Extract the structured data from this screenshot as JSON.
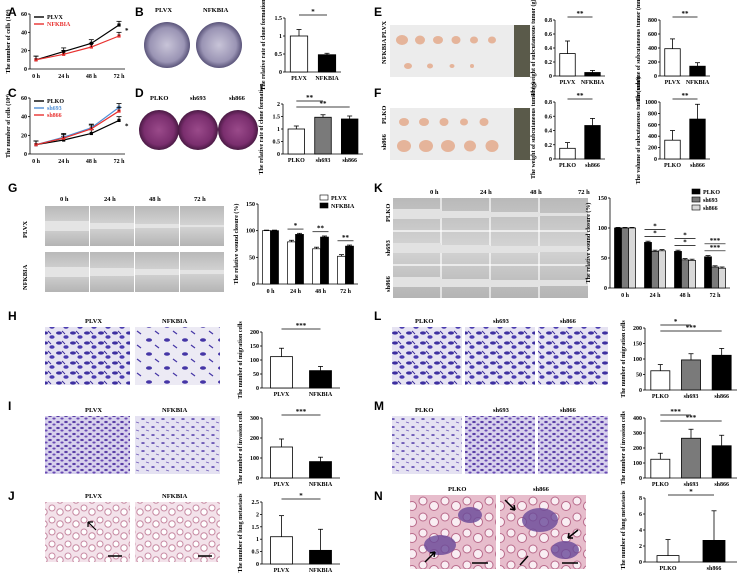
{
  "panel_letters": [
    "A",
    "B",
    "C",
    "D",
    "E",
    "F",
    "G",
    "H",
    "I",
    "J",
    "K",
    "L",
    "M",
    "N"
  ],
  "photo_labels": {
    "B": [
      "PLVX",
      "NFKBIA"
    ],
    "D": [
      "PLKO",
      "sh693",
      "sh866"
    ],
    "E": [
      "NFKBIA",
      "PLVX"
    ],
    "F": [
      "sh866",
      "PLKO"
    ],
    "G_cols": [
      "0 h",
      "24 h",
      "48 h",
      "72 h"
    ],
    "G_rows": [
      "PLVX",
      "NFKBIA"
    ],
    "K_cols": [
      "0 h",
      "24 h",
      "48 h",
      "72 h"
    ],
    "K_rows": [
      "PLKO",
      "sh693",
      "sh866"
    ],
    "H": [
      "PLVX",
      "NFKBIA"
    ],
    "I": [
      "PLVX",
      "NFKBIA"
    ],
    "J": [
      "PLVX",
      "NFKBIA"
    ],
    "L": [
      "PLKO",
      "sh693",
      "sh866"
    ],
    "M": [
      "PLKO",
      "sh693",
      "sh866"
    ],
    "N": [
      "PLKO",
      "sh866"
    ]
  },
  "colors": {
    "black": "#000000",
    "red": "#e8312f",
    "blue": "#4f8fd6",
    "gray": "#7a7a7a",
    "lightgray": "#d9d9d9",
    "crystal_violet": "#4a3c9e",
    "he_pink": "#c98fa0",
    "tumor": "#e8b9a0"
  },
  "chart_data": [
    {
      "id": "A",
      "type": "line",
      "x": [
        "0 h",
        "24 h",
        "48 h",
        "72 h"
      ],
      "ylabel": "The number of cells (10⁴)",
      "ylim": [
        0,
        60
      ],
      "yticks": [
        0,
        20,
        40,
        60
      ],
      "series": [
        {
          "name": "PLVX",
          "color": "#000000",
          "values": [
            10,
            19,
            28,
            48
          ]
        },
        {
          "name": "NFKBIA",
          "color": "#e8312f",
          "values": [
            10,
            16,
            24,
            36
          ]
        }
      ],
      "annotation": "*"
    },
    {
      "id": "B",
      "type": "bar",
      "categories": [
        "PLVX",
        "NFKBIA"
      ],
      "values": [
        1.0,
        0.48
      ],
      "errors": [
        0.18,
        0.04
      ],
      "colors": [
        "#ffffff",
        "#000000"
      ],
      "ylabel": "The relative rate of clone formation",
      "ylim": [
        0,
        1.5
      ],
      "yticks": [
        0.0,
        0.5,
        1.0,
        1.5
      ],
      "significance": [
        {
          "pair": [
            0,
            1
          ],
          "label": "*"
        }
      ]
    },
    {
      "id": "C",
      "type": "line",
      "x": [
        "0 h",
        "24 h",
        "48 h",
        "72 h"
      ],
      "ylabel": "The number of cells (10⁴)",
      "ylim": [
        0,
        60
      ],
      "yticks": [
        0,
        20,
        40,
        60
      ],
      "series": [
        {
          "name": "PLKO",
          "color": "#000000",
          "values": [
            10,
            15,
            22,
            36
          ]
        },
        {
          "name": "sh693",
          "color": "#4f8fd6",
          "values": [
            10,
            18,
            28,
            50
          ]
        },
        {
          "name": "sh866",
          "color": "#e8312f",
          "values": [
            10,
            17,
            27,
            46
          ]
        }
      ],
      "annotation": "*"
    },
    {
      "id": "D",
      "type": "bar",
      "categories": [
        "PLKO",
        "sh693",
        "sh866"
      ],
      "values": [
        1.0,
        1.47,
        1.4
      ],
      "errors": [
        0.12,
        0.1,
        0.12
      ],
      "colors": [
        "#ffffff",
        "#7a7a7a",
        "#000000"
      ],
      "ylabel": "The relative rate of clone formation",
      "ylim": [
        0,
        2.0
      ],
      "yticks": [
        0.0,
        0.5,
        1.0,
        1.5,
        2.0
      ],
      "significance": [
        {
          "pair": [
            0,
            1
          ],
          "label": "**"
        },
        {
          "pair": [
            0,
            2
          ],
          "label": "**"
        }
      ]
    },
    {
      "id": "E1",
      "type": "bar",
      "categories": [
        "PLVX",
        "NFKBIA"
      ],
      "values": [
        0.32,
        0.05
      ],
      "errors": [
        0.18,
        0.03
      ],
      "colors": [
        "#ffffff",
        "#000000"
      ],
      "ylabel": "The weight of subcutaneous tumor (g)",
      "ylim": [
        0,
        0.8
      ],
      "yticks": [
        0.0,
        0.2,
        0.4,
        0.6,
        0.8
      ],
      "significance": [
        {
          "pair": [
            0,
            1
          ],
          "label": "**"
        }
      ]
    },
    {
      "id": "E2",
      "type": "bar",
      "categories": [
        "PLVX",
        "NFKBIA"
      ],
      "values": [
        390,
        140
      ],
      "errors": [
        140,
        50
      ],
      "colors": [
        "#ffffff",
        "#000000"
      ],
      "ylabel": "The volume of subcutaneous tumor (mm³)",
      "ylim": [
        0,
        800
      ],
      "yticks": [
        0,
        200,
        400,
        600,
        800
      ],
      "significance": [
        {
          "pair": [
            0,
            1
          ],
          "label": "**"
        }
      ]
    },
    {
      "id": "F1",
      "type": "bar",
      "categories": [
        "PLKO",
        "sh866"
      ],
      "values": [
        0.15,
        0.47
      ],
      "errors": [
        0.08,
        0.1
      ],
      "colors": [
        "#ffffff",
        "#000000"
      ],
      "ylabel": "The weight of subcutaneous tumor (g)",
      "ylim": [
        0,
        0.8
      ],
      "yticks": [
        0.0,
        0.2,
        0.4,
        0.6,
        0.8
      ],
      "significance": [
        {
          "pair": [
            0,
            1
          ],
          "label": "**"
        }
      ]
    },
    {
      "id": "F2",
      "type": "bar",
      "categories": [
        "PLKO",
        "sh866"
      ],
      "values": [
        330,
        700
      ],
      "errors": [
        170,
        260
      ],
      "colors": [
        "#ffffff",
        "#000000"
      ],
      "ylabel": "The volume of subcutaneous tumor (mm³)",
      "ylim": [
        0,
        1000
      ],
      "yticks": [
        0,
        200,
        400,
        600,
        800,
        1000
      ],
      "significance": [
        {
          "pair": [
            0,
            1
          ],
          "label": "**"
        }
      ]
    },
    {
      "id": "G",
      "type": "bar",
      "categories": [
        "0 h",
        "24 h",
        "48 h",
        "72 h"
      ],
      "series": [
        {
          "name": "PLVX",
          "color": "#ffffff",
          "values": [
            100,
            79,
            66,
            52
          ],
          "errors": [
            1,
            3,
            3,
            3
          ]
        },
        {
          "name": "NFKBIA",
          "color": "#000000",
          "values": [
            100,
            93,
            88,
            71
          ],
          "errors": [
            1,
            2,
            2,
            2
          ]
        }
      ],
      "ylabel": "The relative wound closure (%)",
      "ylim": [
        0,
        150
      ],
      "yticks": [
        0,
        50,
        100,
        150
      ],
      "significance_labels": [
        "*",
        "**",
        "**"
      ]
    },
    {
      "id": "K",
      "type": "bar",
      "categories": [
        "0 h",
        "24 h",
        "48 h",
        "72 h"
      ],
      "series": [
        {
          "name": "PLKO",
          "color": "#000000",
          "values": [
            100,
            76,
            61,
            52
          ],
          "errors": [
            1,
            2,
            2,
            2
          ]
        },
        {
          "name": "sh693",
          "color": "#7a7a7a",
          "values": [
            100,
            61,
            47,
            35
          ],
          "errors": [
            1,
            2,
            2,
            2
          ]
        },
        {
          "name": "sh866",
          "color": "#d9d9d9",
          "values": [
            100,
            62,
            46,
            33
          ],
          "errors": [
            1,
            2,
            2,
            2
          ]
        }
      ],
      "ylabel": "The relative wound closure (%)",
      "ylim": [
        0,
        150
      ],
      "yticks": [
        0,
        50,
        100,
        150
      ],
      "significance_labels": [
        "*",
        "*",
        "*",
        "*",
        "***",
        "***"
      ]
    },
    {
      "id": "H",
      "type": "bar",
      "categories": [
        "PLVX",
        "NFKBIA"
      ],
      "values": [
        112,
        62
      ],
      "errors": [
        30,
        15
      ],
      "colors": [
        "#ffffff",
        "#000000"
      ],
      "ylabel": "The number of migration cells",
      "ylim": [
        0,
        200
      ],
      "yticks": [
        0,
        50,
        100,
        150,
        200
      ],
      "significance": [
        {
          "pair": [
            0,
            1
          ],
          "label": "***"
        }
      ]
    },
    {
      "id": "I",
      "type": "bar",
      "categories": [
        "PLVX",
        "NFKBIA"
      ],
      "values": [
        155,
        82
      ],
      "errors": [
        40,
        22
      ],
      "colors": [
        "#ffffff",
        "#000000"
      ],
      "ylabel": "The number of invasion cells",
      "ylim": [
        0,
        300
      ],
      "yticks": [
        0,
        100,
        200,
        300
      ],
      "significance": [
        {
          "pair": [
            0,
            1
          ],
          "label": "***"
        }
      ]
    },
    {
      "id": "J",
      "type": "bar",
      "categories": [
        "PLVX",
        "NFKBIA"
      ],
      "values": [
        1.1,
        0.55
      ],
      "errors": [
        0.85,
        0.85
      ],
      "colors": [
        "#ffffff",
        "#000000"
      ],
      "ylabel": "The number of lung metastasis",
      "ylim": [
        0,
        2.5
      ],
      "yticks": [
        0.0,
        0.5,
        1.0,
        1.5,
        2.0,
        2.5
      ],
      "significance": [
        {
          "pair": [
            0,
            1
          ],
          "label": "*"
        }
      ]
    },
    {
      "id": "L",
      "type": "bar",
      "categories": [
        "PLKO",
        "sh693",
        "sh866"
      ],
      "values": [
        62,
        97,
        112
      ],
      "errors": [
        20,
        20,
        22
      ],
      "colors": [
        "#ffffff",
        "#7a7a7a",
        "#000000"
      ],
      "ylabel": "The number of migration cells",
      "ylim": [
        0,
        200
      ],
      "yticks": [
        0,
        50,
        100,
        150,
        200
      ],
      "significance": [
        {
          "pair": [
            0,
            1
          ],
          "label": "*"
        },
        {
          "pair": [
            0,
            2
          ],
          "label": "***"
        }
      ]
    },
    {
      "id": "M",
      "type": "bar",
      "categories": [
        "PLKO",
        "sh693",
        "sh866"
      ],
      "values": [
        125,
        265,
        215
      ],
      "errors": [
        40,
        60,
        70
      ],
      "colors": [
        "#ffffff",
        "#7a7a7a",
        "#000000"
      ],
      "ylabel": "The number of invasion cells",
      "ylim": [
        0,
        400
      ],
      "yticks": [
        0,
        100,
        200,
        300,
        400
      ],
      "significance": [
        {
          "pair": [
            0,
            1
          ],
          "label": "***"
        },
        {
          "pair": [
            0,
            2
          ],
          "label": "***"
        }
      ]
    },
    {
      "id": "N",
      "type": "bar",
      "categories": [
        "PLKO",
        "sh866"
      ],
      "values": [
        0.8,
        2.7
      ],
      "errors": [
        2.0,
        3.7
      ],
      "colors": [
        "#ffffff",
        "#000000"
      ],
      "ylabel": "The number of lung metastasis",
      "ylim": [
        0,
        8
      ],
      "yticks": [
        0,
        2,
        4,
        6,
        8
      ],
      "significance": [
        {
          "pair": [
            0,
            1
          ],
          "label": "*"
        }
      ]
    }
  ]
}
